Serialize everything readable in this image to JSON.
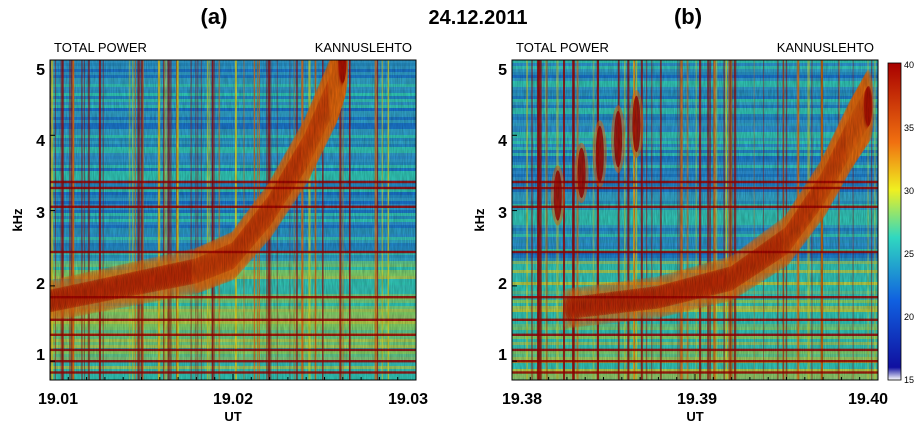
{
  "date_title": "24.12.2011",
  "colors": {
    "spectrogram_low": "#1060e0",
    "spectrogram_mid": "#30d8c0",
    "spectrogram_high": "#a80000",
    "background": "#ffffff"
  },
  "chart_data": [
    {
      "type": "heatmap",
      "panel_label": "(a)",
      "header_left": "TOTAL POWER",
      "header_right": "KANNUSLEHTO",
      "xlabel": "UT",
      "ylabel": "kHz",
      "x_ticks": [
        "19.01",
        "19.02",
        "19.03"
      ],
      "y_ticks": [
        "1",
        "2",
        "3",
        "4",
        "5"
      ],
      "xlim": [
        19.01,
        19.03
      ],
      "ylim": [
        0.75,
        5.0
      ],
      "features": {
        "rising_emission_khz": [
          [
            19.01,
            1.8
          ],
          [
            19.014,
            2.0
          ],
          [
            19.018,
            2.2
          ],
          [
            19.02,
            2.4
          ],
          [
            19.022,
            3.0
          ],
          [
            19.024,
            3.8
          ],
          [
            19.0255,
            4.6
          ],
          [
            19.026,
            5.0
          ]
        ],
        "horizontal_lines_khz": [
          0.85,
          1.0,
          1.15,
          1.35,
          1.55,
          1.85,
          2.45,
          3.05,
          3.3,
          3.38
        ]
      }
    },
    {
      "type": "heatmap",
      "panel_label": "(b)",
      "header_left": "TOTAL POWER",
      "header_right": "KANNUSLEHTO",
      "xlabel": "UT",
      "ylabel": "kHz",
      "x_ticks": [
        "19.38",
        "19.39",
        "19.40"
      ],
      "y_ticks": [
        "1",
        "2",
        "3",
        "4",
        "5"
      ],
      "xlim": [
        19.38,
        19.4
      ],
      "ylim": [
        0.75,
        5.0
      ],
      "features": {
        "rising_emission_khz": [
          [
            19.383,
            1.7
          ],
          [
            19.388,
            1.85
          ],
          [
            19.392,
            2.1
          ],
          [
            19.395,
            2.6
          ],
          [
            19.397,
            3.3
          ],
          [
            19.3985,
            4.0
          ],
          [
            19.3995,
            4.4
          ]
        ],
        "bursts_khz": [
          [
            19.3825,
            2.8,
            3.6
          ],
          [
            19.3838,
            3.1,
            3.9
          ],
          [
            19.3848,
            3.3,
            4.2
          ],
          [
            19.3858,
            3.5,
            4.4
          ],
          [
            19.3868,
            3.7,
            4.6
          ]
        ],
        "horizontal_lines_khz": [
          0.85,
          1.0,
          1.15,
          1.35,
          1.55,
          1.85,
          2.45,
          3.05,
          3.3,
          3.38
        ]
      }
    }
  ],
  "colorbar": {
    "ticks": [
      "40",
      "35",
      "30",
      "25",
      "20",
      "15"
    ],
    "range": [
      15,
      40
    ]
  }
}
